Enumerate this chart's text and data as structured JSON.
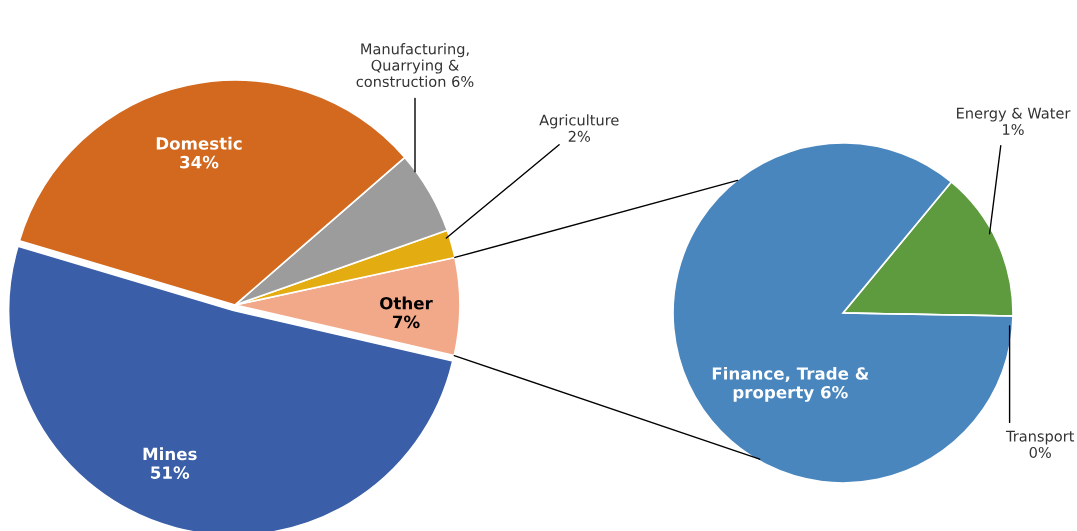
{
  "chart_data": [
    {
      "type": "pie",
      "categories": [
        "Other",
        "Agriculture",
        "Manufacturing, Quarrying & construction",
        "Domestic",
        "Mines"
      ],
      "values": [
        7,
        2,
        6,
        34,
        51
      ],
      "colors": [
        "#f2a98a",
        "#e3ac10",
        "#9c9c9c",
        "#d2691e",
        "#3a5fa8"
      ],
      "value_labels": [
        "7%",
        "2%",
        "6%",
        "34%",
        "51%"
      ]
    },
    {
      "type": "pie",
      "categories": [
        "Energy & Water",
        "Finance, Trade & property",
        "Transport"
      ],
      "values": [
        1,
        6,
        0
      ],
      "colors": [
        "#5e9b3e",
        "#4a86be",
        "#8ea4d8"
      ],
      "value_labels": [
        "1%",
        "6%",
        "0%"
      ]
    }
  ]
}
